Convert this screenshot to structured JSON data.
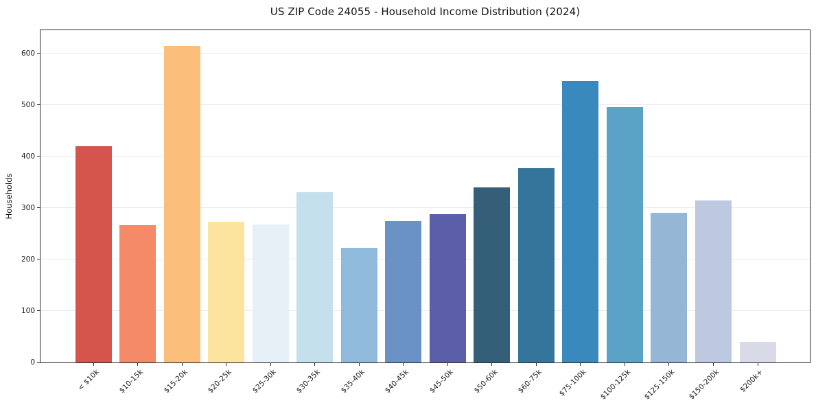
{
  "chart_data": {
    "type": "bar",
    "title": "US ZIP Code 24055 - Household Income Distribution (2024)",
    "xlabel": "",
    "ylabel": "Households",
    "categories": [
      "< $10k",
      "$10-15k",
      "$15-20k",
      "$20-25k",
      "$25-30k",
      "$30-35k",
      "$35-40k",
      "$40-45k",
      "$45-50k",
      "$50-60k",
      "$60-75k",
      "$75-100k",
      "$100-125k",
      "$125-150k",
      "$150-200k",
      "$200k+"
    ],
    "values": [
      420,
      267,
      614,
      273,
      268,
      330,
      222,
      275,
      288,
      340,
      377,
      547,
      496,
      291,
      315,
      40
    ],
    "bar_colors": [
      "#d5544c",
      "#f48a67",
      "#fcbe7b",
      "#fde49e",
      "#e7f0f6",
      "#c4e0ec",
      "#90badb",
      "#6a92c4",
      "#5b5fa9",
      "#355f78",
      "#36759b",
      "#3a89bd",
      "#5aa3c6",
      "#95b7d5",
      "#bdc9e0",
      "#d8dae7"
    ],
    "ylim": [
      0,
      645
    ],
    "yticks": [
      0,
      100,
      200,
      300,
      400,
      500,
      600
    ],
    "xtick_rotation": 45,
    "grid": "horizontal",
    "grid_color": "#e9e9ed",
    "spine_color": "#2b2b2b",
    "text_color": "#1a1a1a",
    "background_color": "#ffffff",
    "legend_position": "none"
  }
}
